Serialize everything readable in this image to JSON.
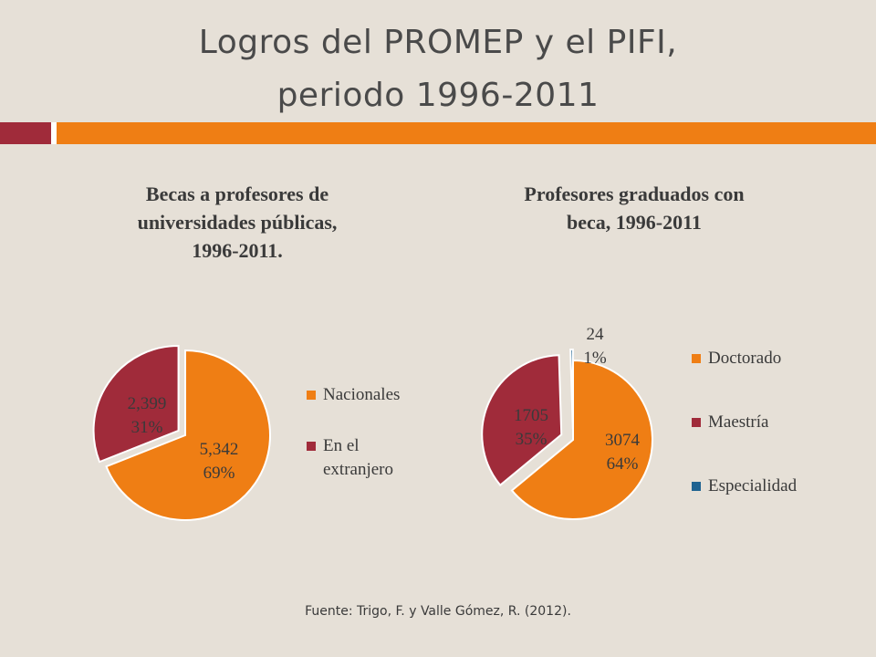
{
  "header": {
    "title_line1": "Logros del PROMEP y el PIFI,",
    "title_line2": "periodo 1996-2011"
  },
  "colors": {
    "background": "#e6e0d7",
    "accent_red": "#a02b3a",
    "accent_orange": "#ef7e14",
    "specialty_blue": "#1f6391"
  },
  "chart_data": [
    {
      "type": "pie",
      "title_lines": [
        "Becas a profesores de",
        "universidades públicas,",
        "1996-2011."
      ],
      "legend_placement": "right",
      "slices": [
        {
          "name": "Nacionales",
          "value": 5342,
          "label": "5,342",
          "percent": "69%",
          "color": "#ef7e14"
        },
        {
          "name": "En el extranjero",
          "value": 2399,
          "label": "2,399",
          "percent": "31%",
          "color": "#a02b3a"
        }
      ],
      "legend": [
        {
          "lines": [
            "Nacionales"
          ],
          "color": "#ef7e14"
        },
        {
          "lines": [
            "En el",
            "extranjero"
          ],
          "color": "#a02b3a"
        }
      ]
    },
    {
      "type": "pie",
      "title_lines": [
        "Profesores graduados con",
        "beca, 1996-2011"
      ],
      "legend_placement": "right",
      "slices": [
        {
          "name": "Doctorado",
          "value": 3074,
          "label": "3074",
          "percent": "64%",
          "color": "#ef7e14"
        },
        {
          "name": "Maestría",
          "value": 1705,
          "label": "1705",
          "percent": "35%",
          "color": "#a02b3a"
        },
        {
          "name": "Especialidad",
          "value": 24,
          "label": "24",
          "percent": "1%",
          "color": "#1f6391"
        }
      ],
      "legend": [
        {
          "lines": [
            "Doctorado"
          ],
          "color": "#ef7e14"
        },
        {
          "lines": [
            "Maestría"
          ],
          "color": "#a02b3a"
        },
        {
          "lines": [
            "Especialidad"
          ],
          "color": "#1f6391"
        }
      ]
    }
  ],
  "footer": {
    "source": "Fuente: Trigo, F. y Valle Gómez, R. (2012)."
  }
}
